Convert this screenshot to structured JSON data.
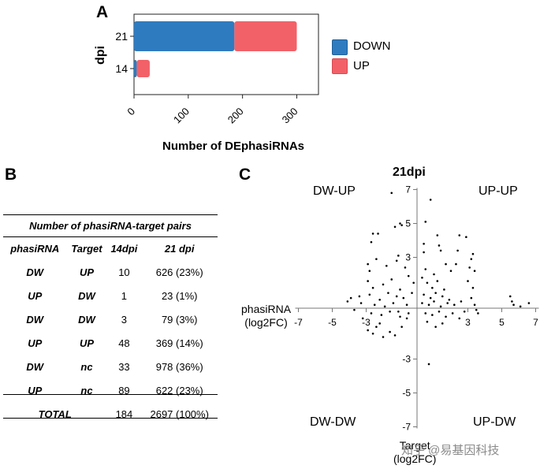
{
  "panels": {
    "a": "A",
    "b": "B",
    "c": "C"
  },
  "chart_data": [
    {
      "type": "bar",
      "orientation": "horizontal",
      "stacked": true,
      "categories": [
        "21",
        "14"
      ],
      "series": [
        {
          "name": "DOWN",
          "values": [
            185,
            5
          ],
          "color": "#2e7bbf"
        },
        {
          "name": "UP",
          "values": [
            115,
            24
          ],
          "color": "#f26168"
        }
      ],
      "xlabel": "Number of DEphasiRNAs",
      "ylabel": "dpi",
      "xlim": [
        0,
        340
      ],
      "xticks": [
        "0",
        "100",
        "200",
        "300"
      ],
      "legend": "right"
    },
    {
      "type": "table",
      "title": "Number of phasiRNA-target pairs",
      "columns": [
        "phasiRNA",
        "Target",
        "14dpi",
        "21 dpi"
      ],
      "rows": [
        [
          "DW",
          "UP",
          "10",
          "626 (23%)"
        ],
        [
          "UP",
          "DW",
          "1",
          "23 (1%)"
        ],
        [
          "DW",
          "DW",
          "3",
          "79 (3%)"
        ],
        [
          "UP",
          "UP",
          "48",
          "369 (14%)"
        ],
        [
          "DW",
          "nc",
          "33",
          "978 (36%)"
        ],
        [
          "UP",
          "nc",
          "89",
          "622 (23%)"
        ]
      ],
      "total": [
        "TOTAL",
        "",
        "184",
        "2697 (100%)"
      ]
    },
    {
      "type": "scatter",
      "title": "21dpi",
      "xlabel": "phasiRNA (log2FC)",
      "xlabel_lines": [
        "phasiRNA",
        "(log2FC)"
      ],
      "ylabel": "Target (log2FC)",
      "ylabel_lines": [
        "Target",
        "(log2FC)"
      ],
      "xlim": [
        -7,
        7
      ],
      "ylim": [
        -7,
        7
      ],
      "xticks": [
        "-7",
        "-5",
        "-3",
        "3",
        "5",
        "7"
      ],
      "yticks": [
        "7",
        "5",
        "3",
        "-3",
        "-5",
        "-7"
      ],
      "quadrants": {
        "top_left": "DW-UP",
        "top_right": "UP-UP",
        "bottom_left": "DW-DW",
        "bottom_right": "UP-DW"
      },
      "points": [
        [
          -2.8,
          2.2
        ],
        [
          -2.9,
          1.6
        ],
        [
          -2.6,
          4.4
        ],
        [
          -2.7,
          3.9
        ],
        [
          -1.3,
          4.8
        ],
        [
          -0.9,
          4.9
        ],
        [
          -1.0,
          5.0
        ],
        [
          -1.5,
          6.8
        ],
        [
          -2.3,
          4.4
        ],
        [
          -1.1,
          3.1
        ],
        [
          0.8,
          6.4
        ],
        [
          0.5,
          5.1
        ],
        [
          1.2,
          4.3
        ],
        [
          0.4,
          3.8
        ],
        [
          1.3,
          3.7
        ],
        [
          1.4,
          3.4
        ],
        [
          2.5,
          4.3
        ],
        [
          2.4,
          3.4
        ],
        [
          2.9,
          4.2
        ],
        [
          0.4,
          3.3
        ],
        [
          -3.9,
          0.6
        ],
        [
          -4.1,
          0.4
        ],
        [
          -3.7,
          -0.1
        ],
        [
          -3.4,
          0.7
        ],
        [
          -3.3,
          0.3
        ],
        [
          -3.2,
          -0.6
        ],
        [
          -2.9,
          -1.3
        ],
        [
          -2.6,
          -1.5
        ],
        [
          -2.4,
          -1.1
        ],
        [
          -2.2,
          -0.9
        ],
        [
          -2.0,
          -1.7
        ],
        [
          -1.6,
          -1.4
        ],
        [
          -1.3,
          -1.6
        ],
        [
          -0.9,
          -1.1
        ],
        [
          -0.6,
          -0.6
        ],
        [
          -2.9,
          2.6
        ],
        [
          -2.4,
          2.9
        ],
        [
          -1.8,
          2.5
        ],
        [
          -1.2,
          2.8
        ],
        [
          -0.7,
          2.4
        ],
        [
          -2.6,
          1.2
        ],
        [
          -2.0,
          1.4
        ],
        [
          -1.5,
          1.7
        ],
        [
          -1.0,
          1.1
        ],
        [
          -0.5,
          1.9
        ],
        [
          -2.8,
          0.8
        ],
        [
          -2.2,
          0.5
        ],
        [
          -1.7,
          0.9
        ],
        [
          -1.2,
          0.7
        ],
        [
          -0.8,
          0.6
        ],
        [
          -2.5,
          0.2
        ],
        [
          -1.9,
          0.1
        ],
        [
          -1.4,
          0.3
        ],
        [
          -1.1,
          -0.2
        ],
        [
          -0.6,
          0.2
        ],
        [
          -2.7,
          -0.3
        ],
        [
          -2.1,
          -0.4
        ],
        [
          -1.6,
          -0.2
        ],
        [
          -1.0,
          -0.5
        ],
        [
          -0.5,
          -0.3
        ],
        [
          0.3,
          1.8
        ],
        [
          0.6,
          1.5
        ],
        [
          0.9,
          1.2
        ],
        [
          1.2,
          1.6
        ],
        [
          1.6,
          1.1
        ],
        [
          0.4,
          0.8
        ],
        [
          0.8,
          0.6
        ],
        [
          1.1,
          0.9
        ],
        [
          1.5,
          0.7
        ],
        [
          1.9,
          0.5
        ],
        [
          0.3,
          0.3
        ],
        [
          0.7,
          0.2
        ],
        [
          1.0,
          0.4
        ],
        [
          1.4,
          0.1
        ],
        [
          1.8,
          0.3
        ],
        [
          2.2,
          0.2
        ],
        [
          2.6,
          0.4
        ],
        [
          0.5,
          -0.3
        ],
        [
          0.9,
          -0.4
        ],
        [
          1.3,
          -0.2
        ],
        [
          1.7,
          -0.5
        ],
        [
          2.1,
          -0.3
        ],
        [
          2.5,
          -0.6
        ],
        [
          2.8,
          -0.2
        ],
        [
          3.0,
          1.6
        ],
        [
          3.1,
          2.4
        ],
        [
          3.3,
          1.2
        ],
        [
          3.2,
          0.6
        ],
        [
          3.4,
          0.2
        ],
        [
          3.5,
          -0.1
        ],
        [
          3.3,
          3.2
        ],
        [
          3.2,
          2.9
        ],
        [
          3.4,
          2.2
        ],
        [
          3.6,
          -0.3
        ],
        [
          5.5,
          0.7
        ],
        [
          5.6,
          0.4
        ],
        [
          5.7,
          0.2
        ],
        [
          6.1,
          0.1
        ],
        [
          6.6,
          0.3
        ],
        [
          0.7,
          -3.3
        ],
        [
          1.5,
          -0.9
        ],
        [
          1.1,
          -1.1
        ],
        [
          0.6,
          -0.8
        ],
        [
          2.3,
          2.6
        ],
        [
          2.0,
          2.2
        ],
        [
          1.7,
          2.6
        ],
        [
          0.5,
          2.3
        ],
        [
          1.0,
          2.0
        ],
        [
          -0.3,
          0.9
        ],
        [
          -0.2,
          1.5
        ]
      ],
      "watermark": "知乎 @易基因科技"
    }
  ]
}
